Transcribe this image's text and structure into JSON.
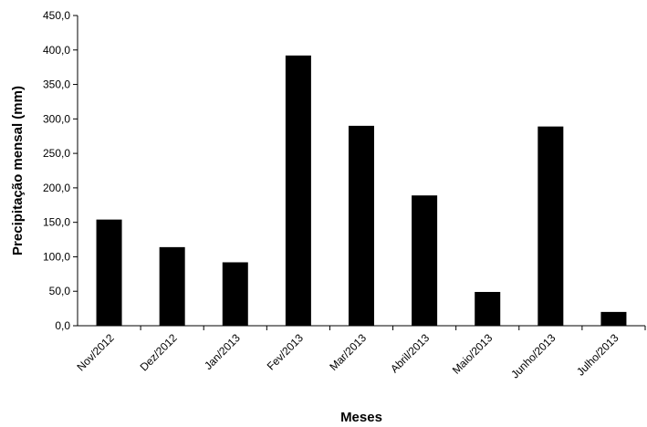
{
  "chart_data": {
    "type": "bar",
    "categories": [
      "Nov/2012",
      "Dez/2012",
      "Jan/2013",
      "Fev/2013",
      "Mar/2013",
      "Abril/2013",
      "Maio/2013",
      "Junho/2013",
      "Julho/2013"
    ],
    "values": [
      154.0,
      114.0,
      92.0,
      392.0,
      290.0,
      189.0,
      49.0,
      289.0,
      20.0
    ],
    "title": "",
    "xlabel": "Meses",
    "ylabel": "Precipitação mensal (mm)",
    "ylim": [
      0,
      450
    ],
    "yticks": [
      "0,0",
      "50,0",
      "100,0",
      "150,0",
      "200,0",
      "250,0",
      "300,0",
      "350,0",
      "400,0",
      "450,0"
    ],
    "bar_color": "#000000",
    "grid": false,
    "legend": "none"
  }
}
